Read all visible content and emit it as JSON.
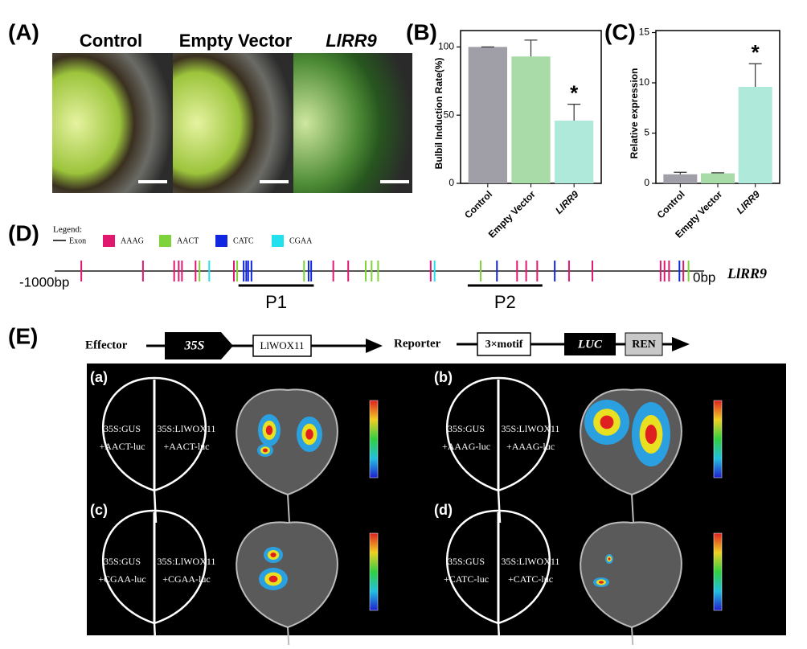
{
  "panels": {
    "A": {
      "label": "(A)",
      "columns": [
        "Control",
        "Empty Vector",
        "LlRR9"
      ]
    },
    "D": {
      "label": "(D)",
      "legend_title": "Legend:",
      "exon": "Exon",
      "start": "-1000bp",
      "end": "0bp",
      "gene": "LlRR9",
      "xlim": [
        -1000,
        0
      ],
      "motifs": [
        {
          "name": "AAAG",
          "color": "#e0196e",
          "positions": [
            -959,
            -864,
            -816,
            -809,
            -804,
            -783,
            -724,
            -571,
            -548,
            -421,
            -288,
            -274,
            -257,
            -208,
            -172,
            -67,
            -61,
            -54,
            -32
          ]
        },
        {
          "name": "AACT",
          "color": "#7ed23a",
          "positions": [
            -777,
            -719,
            -616,
            -521,
            -512,
            -502,
            -344,
            -24
          ]
        },
        {
          "name": "CATC",
          "color": "#1026e0",
          "positions": [
            -709,
            -705,
            -702,
            -697,
            -609,
            -605,
            -319,
            -230,
            -38
          ]
        },
        {
          "name": "CGAA",
          "color": "#22e0ee",
          "positions": [
            -762,
            -415
          ]
        }
      ],
      "regions": [
        {
          "name": "P1",
          "range": [
            -717,
            -601
          ]
        },
        {
          "name": "P2",
          "range": [
            -364,
            -249
          ]
        }
      ]
    },
    "E": {
      "label": "(E)",
      "effector": {
        "label": "Effector",
        "promoter": "35S",
        "gene": "LlWOX11"
      },
      "reporter": {
        "label": "Reporter",
        "motif": "3×motif",
        "luc": "LUC",
        "ren": "REN"
      },
      "subpanels": [
        {
          "label": "(a)",
          "texts": [
            "35S:GUS",
            "+AACT-luc",
            "35S:LlWOX11",
            "+AACT-luc"
          ]
        },
        {
          "label": "(b)",
          "texts": [
            "35S:GUS",
            "+AAAG-luc",
            "35S:LlWOX11",
            "+AAAG-luc"
          ]
        },
        {
          "label": "(c)",
          "texts": [
            "35S:GUS",
            "+CGAA-luc",
            "35S:LlWOX11",
            "+CGAA-luc"
          ]
        },
        {
          "label": "(d)",
          "texts": [
            "35S:GUS",
            "+CATC-luc",
            "35S:LlWOX11",
            "+CATC-luc"
          ]
        }
      ]
    }
  },
  "chart_data": [
    {
      "type": "bar",
      "panel_label": "(B)",
      "ylabel": "Bulbil Induction Rate(%)",
      "categories": [
        "Control",
        "Empty Vector",
        "LlRR9"
      ],
      "values": [
        100,
        93,
        46
      ],
      "errors": [
        0,
        12,
        12
      ],
      "colors": [
        "#a09ea6",
        "#a8dba8",
        "#aee9d9"
      ],
      "ylim": [
        0,
        112
      ],
      "yticks": [
        0,
        50,
        100
      ],
      "annotation": "*"
    },
    {
      "type": "bar",
      "panel_label": "(C)",
      "ylabel": "Relative expression",
      "categories": [
        "Control",
        "Empty Vector",
        "LlRR9"
      ],
      "values": [
        0.9,
        1.0,
        9.6
      ],
      "errors": [
        0.2,
        0.05,
        2.3
      ],
      "colors": [
        "#a09ea6",
        "#a8dba8",
        "#aee9d9"
      ],
      "ylim": [
        0,
        15.2
      ],
      "yticks": [
        0,
        5,
        10,
        15
      ],
      "annotation": "*"
    }
  ]
}
